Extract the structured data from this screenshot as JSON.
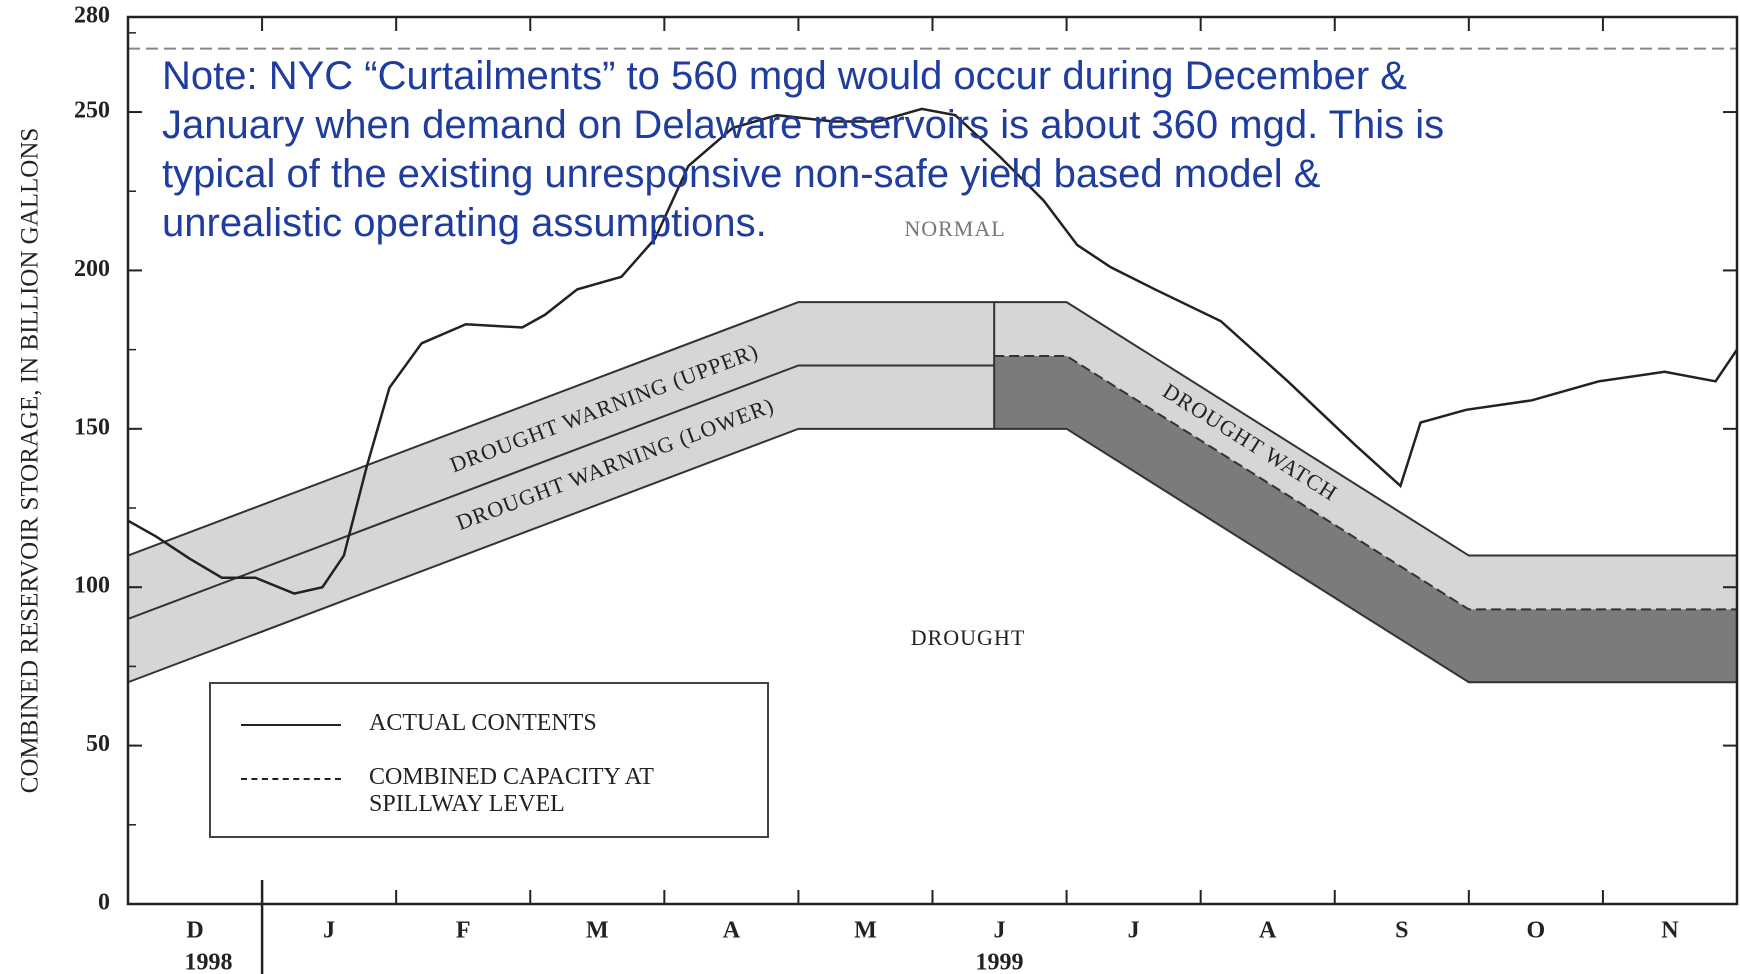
{
  "chart_data": {
    "type": "line",
    "y_label": "COMBINED RESERVOIR STORAGE, IN BILLION GALLONS",
    "categories": [
      "D",
      "J",
      "F",
      "M",
      "A",
      "M",
      "J",
      "J",
      "A",
      "S",
      "O",
      "N"
    ],
    "years": [
      "1998",
      "1999"
    ],
    "xlim": [
      0,
      12
    ],
    "ylim": [
      0,
      280
    ],
    "yticks": [
      0,
      50,
      100,
      150,
      200,
      250,
      280
    ],
    "series": [
      {
        "name": "ACTUAL CONTENTS",
        "color": "#222222",
        "style": "solid",
        "x": [
          0,
          0.21,
          0.46,
          0.7,
          0.95,
          1.24,
          1.45,
          1.61,
          1.78,
          1.95,
          2.19,
          2.52,
          2.94,
          3.11,
          3.35,
          3.68,
          3.93,
          4.18,
          4.51,
          4.84,
          5.26,
          5.59,
          5.92,
          6.17,
          6.5,
          6.83,
          7.08,
          7.33,
          7.66,
          8.15,
          8.65,
          9.15,
          9.49,
          9.64,
          9.98,
          10.47,
          10.97,
          11.46,
          11.84,
          12
        ],
        "values": [
          121,
          116,
          109,
          103,
          103,
          98,
          100,
          110,
          138,
          163,
          177,
          183,
          182,
          186,
          194,
          198,
          210,
          233,
          245,
          249,
          247,
          247,
          251,
          249,
          236,
          222,
          208,
          201,
          194,
          184,
          165,
          145,
          132,
          152,
          156,
          159,
          165,
          168,
          165,
          175
        ]
      },
      {
        "name": "COMBINED CAPACITY AT SPILLWAY LEVEL",
        "color": "#888888",
        "style": "dashed",
        "x": [
          0,
          12
        ],
        "values": [
          270,
          270
        ]
      }
    ],
    "zones": {
      "upper": {
        "x": [
          0,
          5,
          7,
          10,
          12
        ],
        "values": [
          110,
          190,
          190,
          110,
          110
        ]
      },
      "middle": {
        "x": [
          0,
          5,
          6.46
        ],
        "values": [
          90,
          170,
          170
        ]
      },
      "watch": {
        "x": [
          6.46,
          7,
          10,
          12
        ],
        "values": [
          173,
          173,
          93,
          93
        ]
      },
      "lower": {
        "x": [
          0,
          5,
          7,
          10,
          12
        ],
        "values": [
          70,
          150,
          150,
          70,
          70
        ]
      },
      "light_color": "#d6d6d6",
      "dark_color": "#7b7b7b"
    },
    "annotations": [
      "DROUGHT WARNING (UPPER)",
      "DROUGHT WARNING (LOWER)",
      "DROUGHT WATCH",
      "NORMAL",
      "DROUGHT"
    ],
    "note": [
      "Note: NYC “Curtailments” to 560 mgd would occur during December &",
      "January when demand on Delaware reservoirs is about 360 mgd. This is",
      "typical of the existing unresponsive non-safe yield based model &",
      "unrealistic operating assumptions."
    ]
  }
}
